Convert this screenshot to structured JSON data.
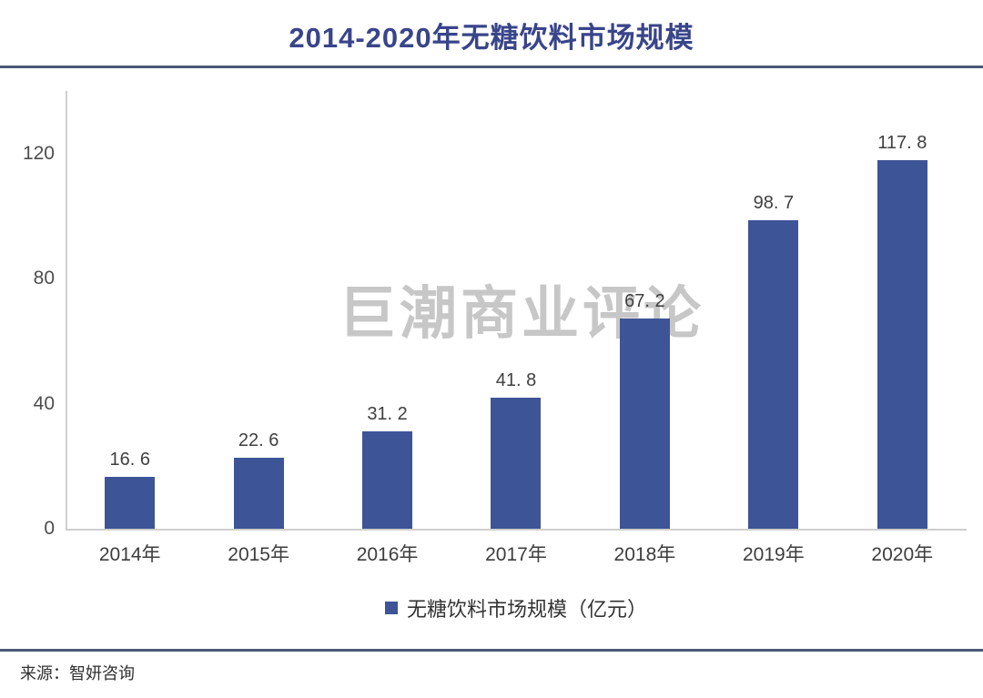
{
  "header": {
    "title": "2014-2020年无糖饮料市场规模"
  },
  "watermark": {
    "text": "巨潮商业评论"
  },
  "footer": {
    "source": "来源：智妍咨询"
  },
  "legend": {
    "label": "无糖饮料市场规模（亿元）"
  },
  "colors": {
    "bar": "#3d5496",
    "title": "#39458a",
    "separator": "#4e5878",
    "axis_line": "#cfcfcf",
    "watermark": "#c7c7c7",
    "value_label": "#3f3f3f",
    "tick_label": "#4d4d4d"
  },
  "chart_data": {
    "type": "bar",
    "title": "2014-2020年无糖饮料市场规模",
    "categories": [
      "2014年",
      "2015年",
      "2016年",
      "2017年",
      "2018年",
      "2019年",
      "2020年"
    ],
    "values": [
      16.6,
      22.6,
      31.2,
      41.8,
      67.2,
      98.7,
      117.8
    ],
    "value_labels": [
      "16. 6",
      "22. 6",
      "31. 2",
      "41. 8",
      "67. 2",
      "98. 7",
      "117. 8"
    ],
    "xlabel": "",
    "ylabel": "",
    "ylim": [
      0,
      140
    ],
    "yticks": [
      0,
      40,
      80,
      120
    ],
    "legend_entries": [
      "无糖饮料市场规模（亿元）"
    ],
    "legend_position": "bottom-center",
    "grid": false,
    "bar_color": "#3d5496",
    "unit": "亿元"
  }
}
